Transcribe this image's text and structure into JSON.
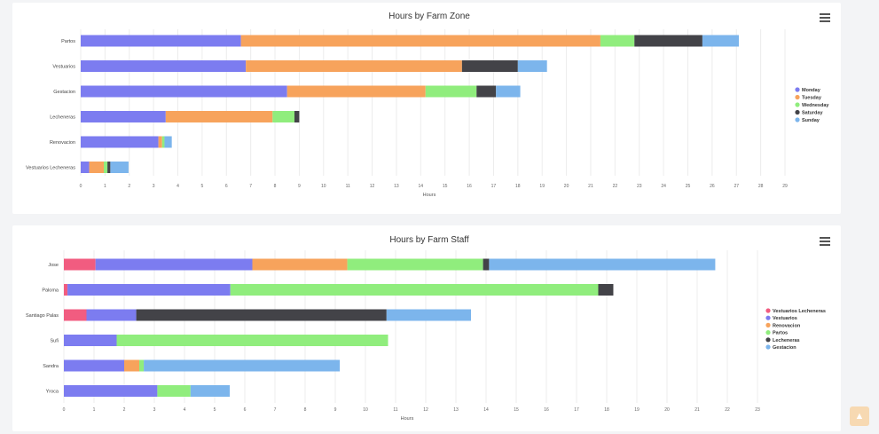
{
  "colors": {
    "monday": "#7c7cf0",
    "tuesday": "#f7a35c",
    "wednesday": "#90ed7d",
    "saturday": "#434348",
    "sunday": "#7cb5ec",
    "vestuarios_lecheneras": "#f15c80"
  },
  "icons": {
    "menu": "hamburger-menu-icon",
    "scroll_top": "arrow-up-icon"
  },
  "chart_data": [
    {
      "type": "bar",
      "orientation": "horizontal",
      "stacked": true,
      "title": "Hours by Farm Zone",
      "xlabel": "Hours",
      "ylabel": "",
      "xlim": [
        0,
        29
      ],
      "xticks": [
        0,
        1,
        2,
        3,
        4,
        5,
        6,
        7,
        8,
        9,
        10,
        11,
        12,
        13,
        14,
        15,
        16,
        17,
        18,
        19,
        20,
        21,
        22,
        23,
        24,
        25,
        26,
        27,
        28,
        29
      ],
      "grid": true,
      "legend_position": "right",
      "categories": [
        "Partos",
        "Vestuarios",
        "Gestacion",
        "Lecheneras",
        "Renovacion",
        "Vestuarios Lecheneras"
      ],
      "series": [
        {
          "name": "Monday",
          "color": "#7c7cf0",
          "values": [
            6.6,
            6.8,
            8.5,
            3.5,
            3.2,
            0.35
          ]
        },
        {
          "name": "Tuesday",
          "color": "#f7a35c",
          "values": [
            14.8,
            8.9,
            5.7,
            4.4,
            0.15,
            0.6
          ]
        },
        {
          "name": "Wednesday",
          "color": "#90ed7d",
          "values": [
            1.4,
            0,
            2.1,
            0.9,
            0.1,
            0.15
          ]
        },
        {
          "name": "Saturday",
          "color": "#434348",
          "values": [
            2.8,
            2.3,
            0.8,
            0.2,
            0,
            0.12
          ]
        },
        {
          "name": "Sunday",
          "color": "#7cb5ec",
          "values": [
            1.5,
            1.2,
            1.0,
            0,
            0.3,
            0.75
          ]
        }
      ]
    },
    {
      "type": "bar",
      "orientation": "horizontal",
      "stacked": true,
      "title": "Hours by Farm Staff",
      "xlabel": "Hours",
      "ylabel": "",
      "xlim": [
        0,
        23
      ],
      "xticks": [
        0,
        1,
        2,
        3,
        4,
        5,
        6,
        7,
        8,
        9,
        10,
        11,
        12,
        13,
        14,
        15,
        16,
        17,
        18,
        19,
        20,
        21,
        22,
        23
      ],
      "grid": true,
      "legend_position": "right",
      "categories": [
        "Jose",
        "Paloma",
        "Santiago Palas",
        "Sufi",
        "Sandra",
        "Yroca"
      ],
      "series": [
        {
          "name": "Vestuarios Lecheneras",
          "color": "#f15c80",
          "values": [
            1.05,
            0.12,
            0.75,
            0,
            0,
            0
          ]
        },
        {
          "name": "Vestuarios",
          "color": "#7c7cf0",
          "values": [
            5.2,
            5.4,
            1.65,
            1.75,
            2.0,
            3.1
          ]
        },
        {
          "name": "Renovacion",
          "color": "#f7a35c",
          "values": [
            3.15,
            0,
            0,
            0,
            0.5,
            0
          ]
        },
        {
          "name": "Partos",
          "color": "#90ed7d",
          "values": [
            4.5,
            12.2,
            0,
            9.0,
            0.15,
            1.1
          ]
        },
        {
          "name": "Lecheneras",
          "color": "#434348",
          "values": [
            0.2,
            0.5,
            8.3,
            0,
            0,
            0
          ]
        },
        {
          "name": "Gestacion",
          "color": "#7cb5ec",
          "values": [
            7.5,
            0,
            2.8,
            0,
            6.5,
            1.3
          ]
        }
      ]
    }
  ]
}
